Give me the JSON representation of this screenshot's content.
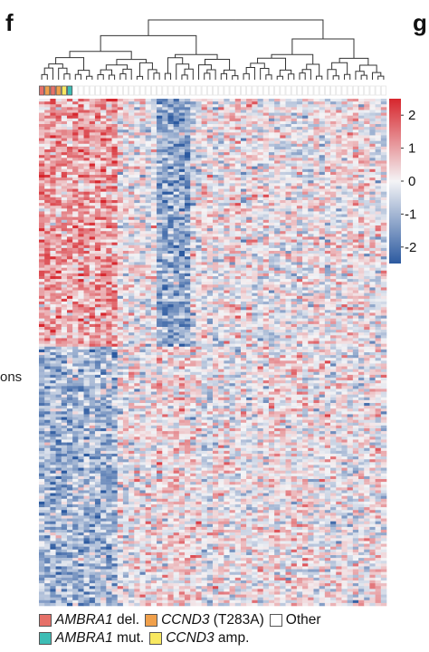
{
  "panel_labels": {
    "left": "f",
    "right": "g"
  },
  "side_label": "ons",
  "colors": {
    "low": "#2c5aa0",
    "mid": "#f4f4f6",
    "high": "#d7262d",
    "ambra1_del": "#e67068",
    "ambra1_mut": "#3dbdb5",
    "ccnd3_t283a": "#f0a04b",
    "ccnd3_amp": "#f8e860",
    "other": "#ffffff"
  },
  "chart_data": {
    "type": "heatmap",
    "n_columns": 62,
    "n_rows": 180,
    "color_scale": {
      "min": -2.5,
      "max": 2.5
    },
    "colorbar_ticks": [
      "2",
      "1",
      "0",
      "-1",
      "-2"
    ],
    "colorbar_tick_values": [
      2,
      1,
      0,
      -1,
      -2
    ],
    "annotation_bar": [
      "ambra1_del",
      "ccnd3_t283a",
      "ambra1_del",
      "ccnd3_t283a",
      "ccnd3_amp",
      "ambra1_mut"
    ],
    "legend": [
      [
        {
          "key": "ambra1_del",
          "gene": "AMBRA1",
          "suffix": " del."
        },
        {
          "key": "ccnd3_t283a",
          "gene": "CCND3",
          "suffix": " (T283A)"
        },
        {
          "key": "other",
          "gene": "",
          "suffix": "Other"
        }
      ],
      [
        {
          "key": "ambra1_mut",
          "gene": "AMBRA1",
          "suffix": " mut."
        },
        {
          "key": "ccnd3_amp",
          "gene": "CCND3",
          "suffix": " amp."
        }
      ]
    ]
  }
}
